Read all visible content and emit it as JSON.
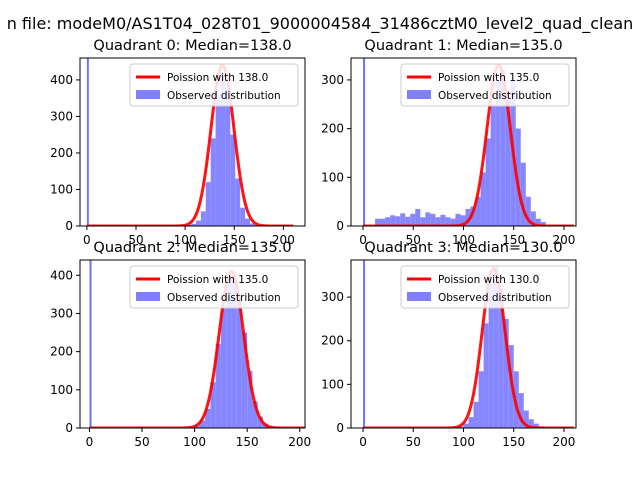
{
  "figure_title": "n file: modeM0/AS1T04_028T01_9000004584_31486cztM0_level2_quad_clean",
  "colors": {
    "poisson": "#ff0000",
    "hist": "#8080ff",
    "hist_spike": "#6a6aff"
  },
  "chart_data": [
    {
      "type": "bar",
      "title": "Quadrant 0: Median=138.0",
      "legend": {
        "placement": "top-right",
        "poisson_label": "Poission with 138.0",
        "hist_label": "Observed distribution"
      },
      "xlim": [
        -7,
        222
      ],
      "ylim": [
        0,
        460
      ],
      "xticks": [
        0,
        50,
        100,
        150,
        200
      ],
      "yticks": [
        0,
        100,
        200,
        300,
        400
      ],
      "median": 138,
      "peak": 440,
      "sigma": 11.7,
      "hist_bins": [
        [
          0,
          460
        ],
        [
          96,
          2
        ],
        [
          101,
          3
        ],
        [
          106,
          6
        ],
        [
          111,
          15
        ],
        [
          116,
          40
        ],
        [
          121,
          120
        ],
        [
          126,
          240
        ],
        [
          131,
          360
        ],
        [
          136,
          420
        ],
        [
          141,
          380
        ],
        [
          146,
          250
        ],
        [
          151,
          130
        ],
        [
          156,
          50
        ],
        [
          161,
          20
        ],
        [
          166,
          7
        ],
        [
          171,
          2
        ]
      ]
    },
    {
      "type": "bar",
      "title": "Quadrant 1: Median=135.0",
      "legend": {
        "placement": "top-right",
        "poisson_label": "Poission with 135.0",
        "hist_label": "Observed distribution"
      },
      "xlim": [
        -12,
        212
      ],
      "ylim": [
        0,
        345
      ],
      "xticks": [
        0,
        50,
        100,
        150,
        200
      ],
      "yticks": [
        0,
        100,
        200,
        300
      ],
      "median": 135,
      "peak": 330,
      "sigma": 11.6,
      "hist_bins": [
        [
          0,
          345
        ],
        [
          12,
          15
        ],
        [
          17,
          15
        ],
        [
          22,
          18
        ],
        [
          27,
          22
        ],
        [
          32,
          20
        ],
        [
          37,
          26
        ],
        [
          42,
          19
        ],
        [
          47,
          25
        ],
        [
          52,
          35
        ],
        [
          57,
          18
        ],
        [
          62,
          28
        ],
        [
          67,
          25
        ],
        [
          72,
          18
        ],
        [
          77,
          23
        ],
        [
          82,
          18
        ],
        [
          87,
          15
        ],
        [
          92,
          25
        ],
        [
          97,
          22
        ],
        [
          102,
          35
        ],
        [
          107,
          40
        ],
        [
          112,
          60
        ],
        [
          117,
          110
        ],
        [
          122,
          180
        ],
        [
          127,
          250
        ],
        [
          132,
          300
        ],
        [
          137,
          320
        ],
        [
          142,
          270
        ],
        [
          147,
          300
        ],
        [
          152,
          200
        ],
        [
          157,
          130
        ],
        [
          162,
          60
        ],
        [
          167,
          30
        ],
        [
          172,
          15
        ],
        [
          177,
          8
        ]
      ]
    },
    {
      "type": "bar",
      "title": "Quadrant 2: Median=135.0",
      "legend": {
        "placement": "top-right",
        "poisson_label": "Poission with 135.0",
        "hist_label": "Observed distribution"
      },
      "xlim": [
        -9,
        205
      ],
      "ylim": [
        0,
        440
      ],
      "xticks": [
        0,
        50,
        100,
        150,
        200
      ],
      "yticks": [
        0,
        100,
        200,
        300,
        400
      ],
      "median": 135,
      "peak": 410,
      "sigma": 11.6,
      "hist_bins": [
        [
          0,
          440
        ],
        [
          90,
          2
        ],
        [
          95,
          4
        ],
        [
          100,
          8
        ],
        [
          105,
          20
        ],
        [
          110,
          50
        ],
        [
          115,
          120
        ],
        [
          120,
          220
        ],
        [
          125,
          320
        ],
        [
          130,
          390
        ],
        [
          135,
          400
        ],
        [
          140,
          340
        ],
        [
          145,
          250
        ],
        [
          150,
          150
        ],
        [
          155,
          70
        ],
        [
          160,
          30
        ],
        [
          165,
          12
        ],
        [
          170,
          5
        ],
        [
          175,
          2
        ]
      ]
    },
    {
      "type": "bar",
      "title": "Quadrant 3: Median=130.0",
      "legend": {
        "placement": "top-right",
        "poisson_label": "Poission with 130.0",
        "hist_label": "Observed distribution"
      },
      "xlim": [
        -12,
        212
      ],
      "ylim": [
        0,
        385
      ],
      "xticks": [
        0,
        50,
        100,
        150,
        200
      ],
      "yticks": [
        0,
        100,
        200,
        300
      ],
      "median": 130,
      "peak": 365,
      "sigma": 11.4,
      "hist_bins": [
        [
          0,
          385
        ],
        [
          95,
          3
        ],
        [
          100,
          10
        ],
        [
          105,
          25
        ],
        [
          110,
          60
        ],
        [
          115,
          130
        ],
        [
          120,
          240
        ],
        [
          125,
          330
        ],
        [
          130,
          370
        ],
        [
          135,
          320
        ],
        [
          140,
          250
        ],
        [
          145,
          190
        ],
        [
          150,
          130
        ],
        [
          155,
          80
        ],
        [
          160,
          40
        ],
        [
          165,
          20
        ],
        [
          170,
          10
        ],
        [
          175,
          4
        ]
      ]
    }
  ]
}
